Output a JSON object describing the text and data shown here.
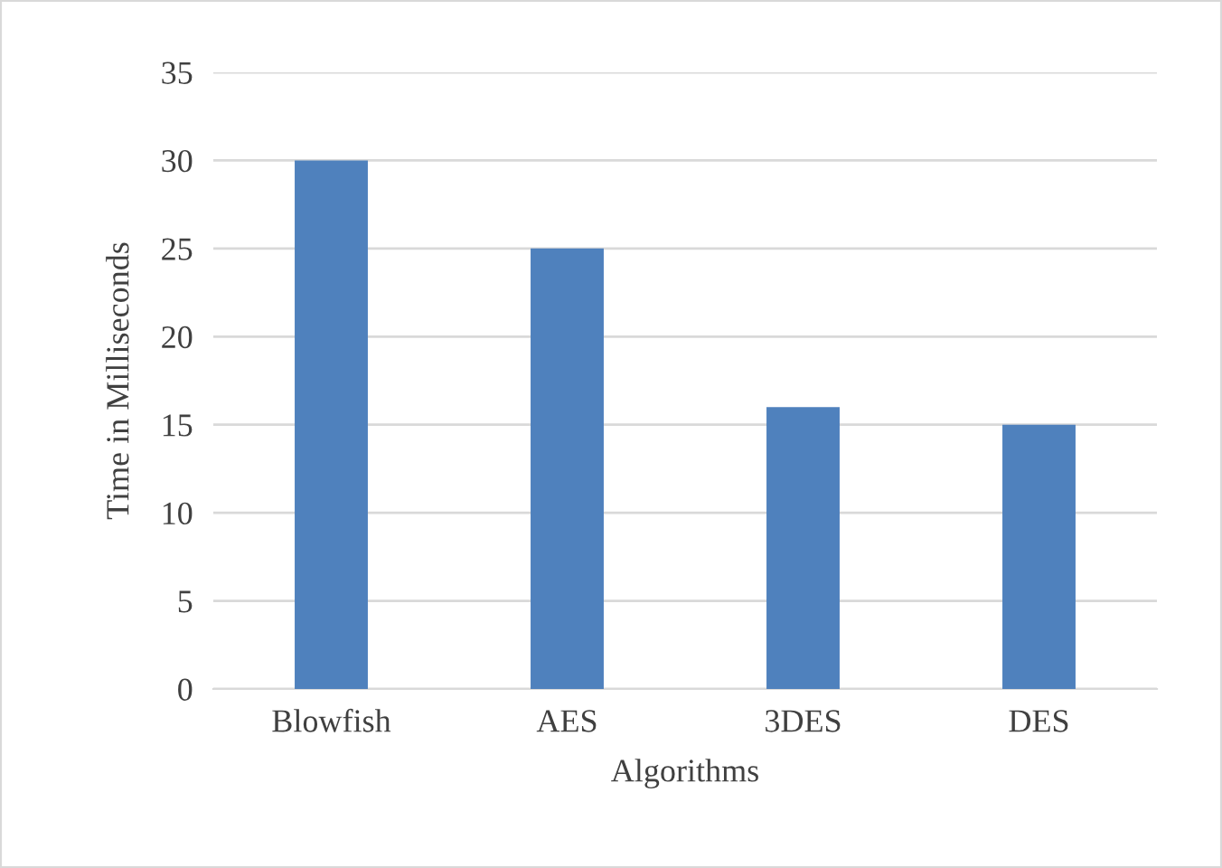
{
  "chart_data": {
    "type": "bar",
    "xlabel": "Algorithms",
    "ylabel": "Time in Milliseconds",
    "categories": [
      "Blowfish",
      "AES",
      "3DES",
      "DES"
    ],
    "values": [
      30,
      25,
      16,
      15
    ],
    "color": "#4f81bd",
    "ylim": [
      0,
      35
    ],
    "yticks": [
      0,
      5,
      10,
      15,
      20,
      25,
      30,
      35
    ],
    "grid": "y",
    "legend": false
  }
}
